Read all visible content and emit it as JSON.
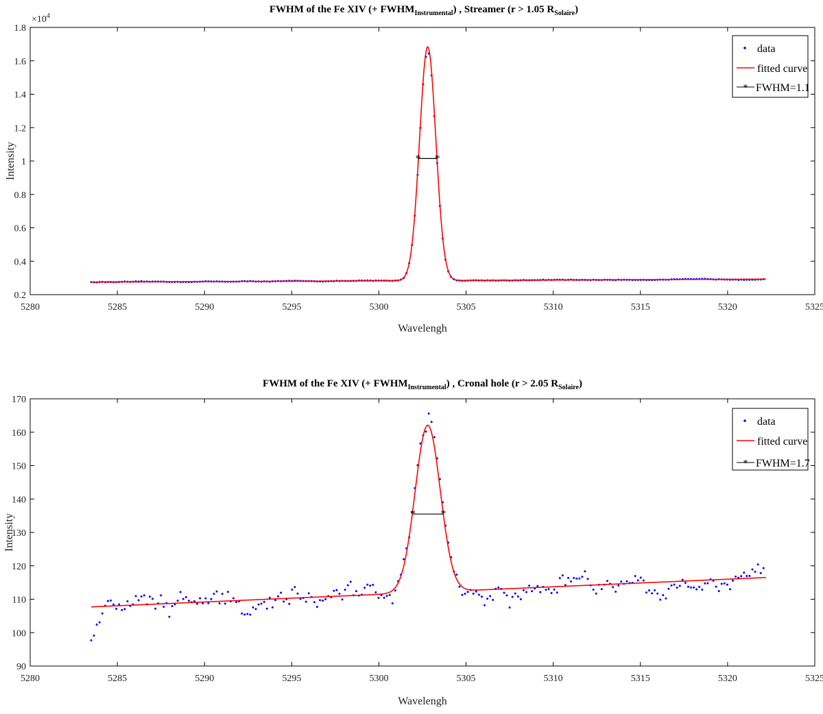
{
  "chart_data": [
    {
      "type": "line",
      "title_main": "FWHM of the Fe XIV (+ FWHM",
      "title_sub": "Instrumental",
      "title_mid": ") , Streamer (r > 1.05 R",
      "title_sub2": "Solaire",
      "title_end": ")",
      "xlabel": "Wavelengh",
      "ylabel": "Intensity",
      "y_exponent_label": "×10",
      "y_exponent_power": "4",
      "xlim": [
        5280,
        5325
      ],
      "ylim": [
        0.2,
        1.8
      ],
      "xticks": [
        "5280",
        "5285",
        "5290",
        "5295",
        "5300",
        "5305",
        "5310",
        "5315",
        "5320",
        "5325"
      ],
      "yticks": [
        "0.2",
        "0.4",
        "0.6",
        "0.8",
        "1",
        "1.2",
        "1.4",
        "1.6",
        "1.8"
      ],
      "legend": {
        "placement": "top-right",
        "entries": [
          "data",
          "fitted curve",
          "FWHM=1.1"
        ]
      },
      "fit": {
        "amplitude": 1.4,
        "center": 5302.8,
        "fwhm": 1.1,
        "baseline_start": 0.275,
        "baseline_end": 0.293
      },
      "fwhm_marker": {
        "x": [
          5302.25,
          5303.35
        ],
        "y": 1.015
      },
      "series": [
        {
          "name": "data",
          "color": "#0000ff",
          "x_start": 5283.5,
          "x_end": 5322.2,
          "step": 0.16,
          "noise": 0.002,
          "peak_scale": 0.98
        },
        {
          "name": "fitted curve",
          "color": "#ff0000"
        },
        {
          "name": "FWHM=1.1",
          "color": "#000000"
        }
      ]
    },
    {
      "type": "line",
      "title_main": "FWHM of the Fe XIV (+ FWHM",
      "title_sub": "Instrumental",
      "title_mid": ") , Cronal hole (r > 2.05 R",
      "title_sub2": "Solaire",
      "title_end": ")",
      "xlabel": "Wavelengh",
      "ylabel": "Intensity",
      "xlim": [
        5280,
        5325
      ],
      "ylim": [
        90,
        170
      ],
      "xticks": [
        "5280",
        "5285",
        "5290",
        "5295",
        "5300",
        "5305",
        "5310",
        "5315",
        "5320",
        "5325"
      ],
      "yticks": [
        "90",
        "100",
        "110",
        "120",
        "130",
        "140",
        "150",
        "160",
        "170"
      ],
      "legend": {
        "placement": "top-right",
        "entries": [
          "data",
          "fitted curve",
          "FWHM=1.7"
        ]
      },
      "fit": {
        "amplitude": 50,
        "center": 5302.8,
        "fwhm": 1.7,
        "baseline_start": 107.7,
        "baseline_end": 116.5
      },
      "fwhm_marker": {
        "x": [
          5301.95,
          5303.7
        ],
        "y": 135.5
      },
      "series": [
        {
          "name": "data",
          "color": "#0000ff",
          "x_start": 5283.5,
          "x_end": 5322.2,
          "step": 0.16,
          "noise": 3.2,
          "peak_scale": 1.08
        },
        {
          "name": "fitted curve",
          "color": "#ff0000"
        },
        {
          "name": "FWHM=1.7",
          "color": "#000000"
        }
      ]
    }
  ]
}
